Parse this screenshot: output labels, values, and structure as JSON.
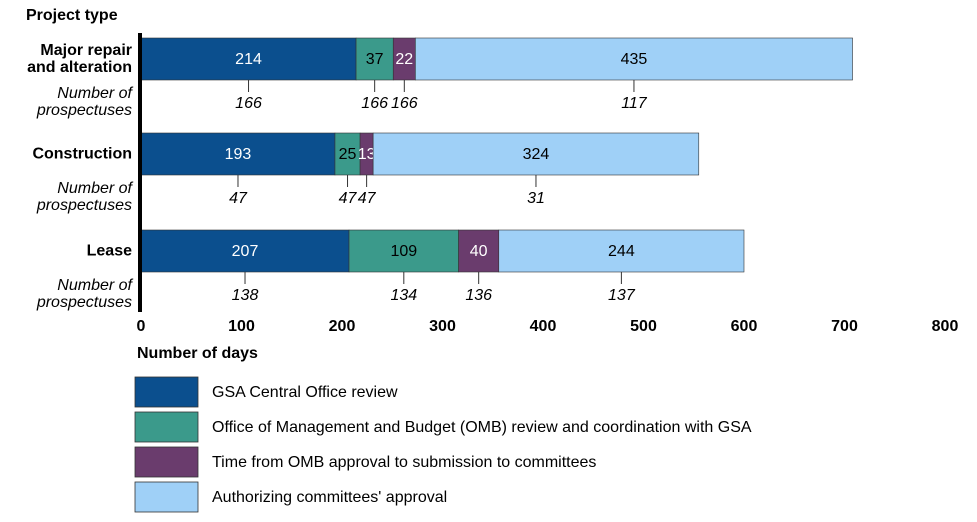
{
  "chart_data": {
    "type": "stacked-bar-horizontal",
    "y_axis_title": "Project type",
    "x_axis_label": "Number of days",
    "count_label": "Number of prospectuses",
    "categories": [
      "Major repair and alteration",
      "Construction",
      "Lease"
    ],
    "series": [
      {
        "name": "GSA Central Office review",
        "color": "#0b4f8e",
        "text_color": "#ffffff",
        "values": [
          214,
          193,
          207
        ],
        "counts": [
          166,
          47,
          138
        ]
      },
      {
        "name": "Office of Management and Budget (OMB) review and coordination with GSA",
        "color": "#3b9a8b",
        "text_color": "#000000",
        "values": [
          37,
          25,
          109
        ],
        "counts": [
          166,
          47,
          134
        ]
      },
      {
        "name": "Time from OMB approval to submission to committees",
        "color": "#6a3c6d",
        "text_color": "#ffffff",
        "values": [
          22,
          13,
          40
        ],
        "counts": [
          166,
          47,
          136
        ]
      },
      {
        "name": "Authorizing committees' approval",
        "color": "#9fd0f7",
        "text_color": "#000000",
        "values": [
          435,
          324,
          244
        ],
        "counts": [
          117,
          31,
          137
        ]
      }
    ],
    "xlim": [
      0,
      800
    ],
    "xticks": [
      0,
      100,
      200,
      300,
      400,
      500,
      600,
      700,
      800
    ]
  }
}
